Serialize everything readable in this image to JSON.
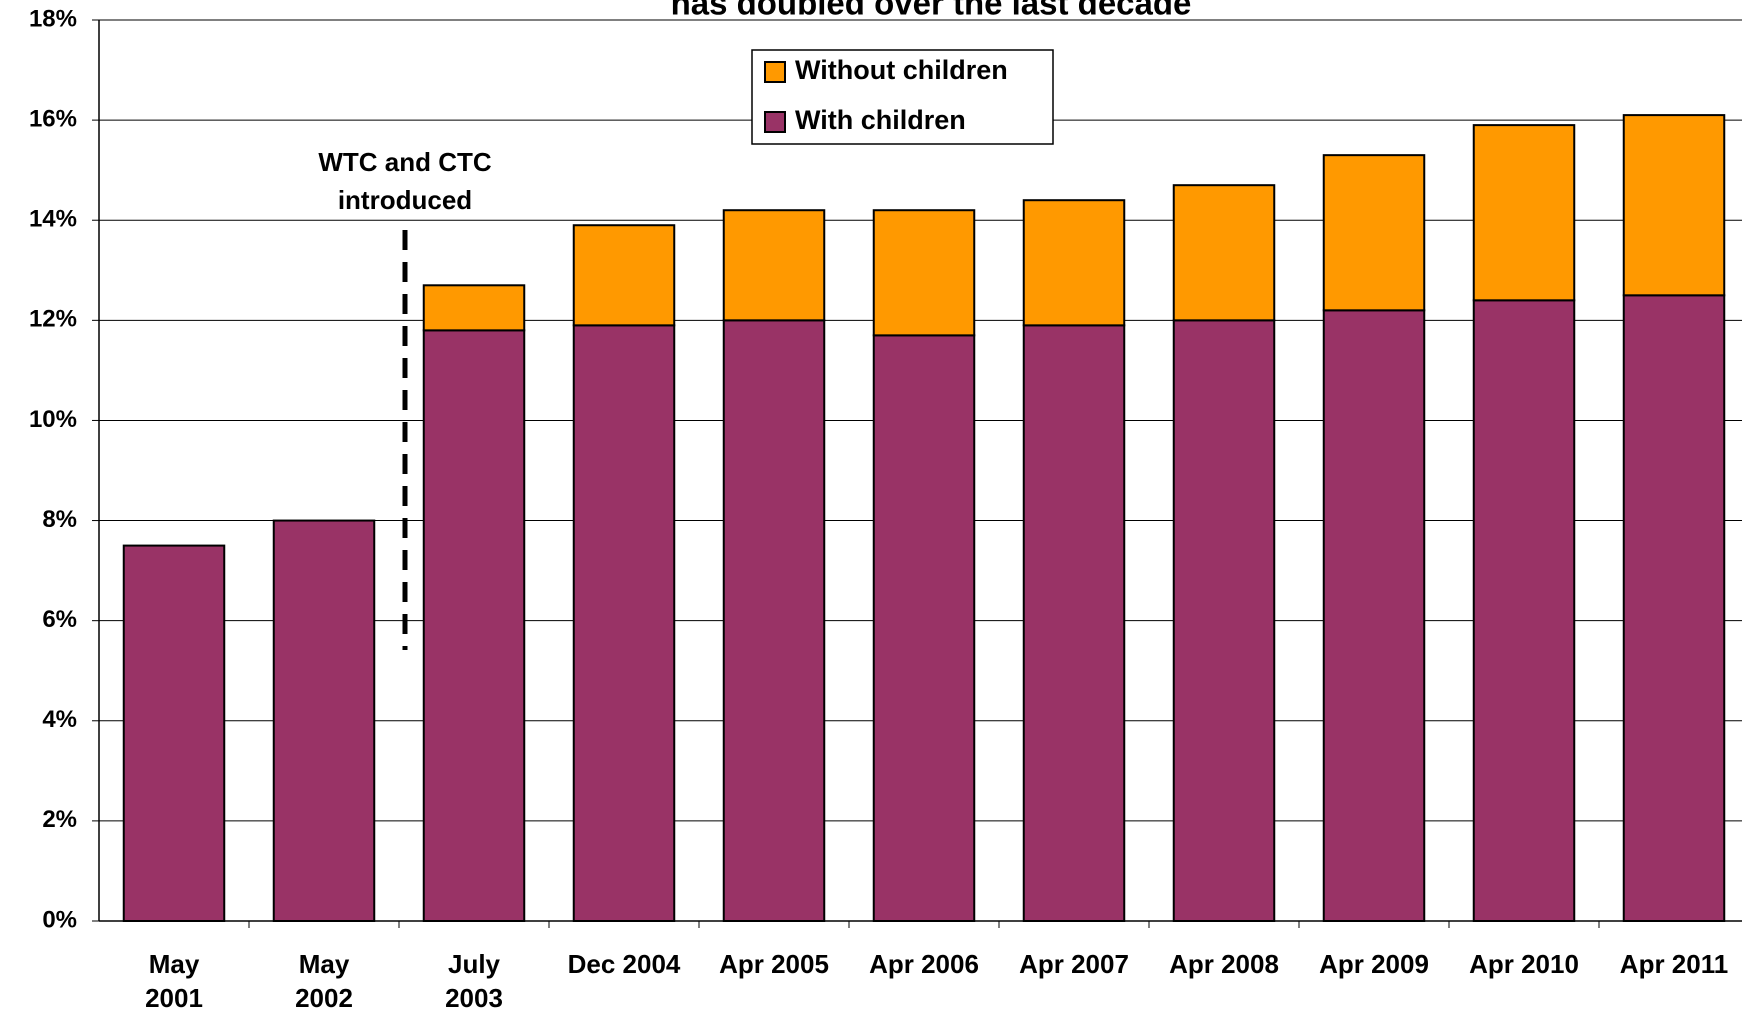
{
  "chart_data": {
    "type": "stacked-bar",
    "title": "has doubled over the last decade",
    "categories": [
      "May 2001",
      "May 2002",
      "July 2003",
      "Dec 2004",
      "Apr 2005",
      "Apr 2006",
      "Apr 2007",
      "Apr 2008",
      "Apr 2009",
      "Apr 2010",
      "Apr 2011"
    ],
    "series": [
      {
        "name": "With children",
        "color": "#993366",
        "values": [
          7.5,
          8.0,
          11.8,
          11.9,
          12.0,
          11.7,
          11.9,
          12.0,
          12.2,
          12.4,
          12.5
        ]
      },
      {
        "name": "Without children",
        "color": "#ff9900",
        "values": [
          null,
          null,
          0.9,
          2.0,
          2.2,
          2.5,
          2.5,
          2.7,
          3.1,
          3.5,
          3.6
        ]
      }
    ],
    "ylim": [
      0,
      18
    ],
    "yticks": [
      {
        "value": 0,
        "label": "0%"
      },
      {
        "value": 2,
        "label": "2%"
      },
      {
        "value": 4,
        "label": "4%"
      },
      {
        "value": 6,
        "label": "6%"
      },
      {
        "value": 8,
        "label": "8%"
      },
      {
        "value": 10,
        "label": "10%"
      },
      {
        "value": 12,
        "label": "12%"
      },
      {
        "value": 14,
        "label": "14%"
      },
      {
        "value": 16,
        "label": "16%"
      },
      {
        "value": 18,
        "label": "18%"
      }
    ],
    "annotation": "WTC and CTC introduced",
    "grid": true
  }
}
